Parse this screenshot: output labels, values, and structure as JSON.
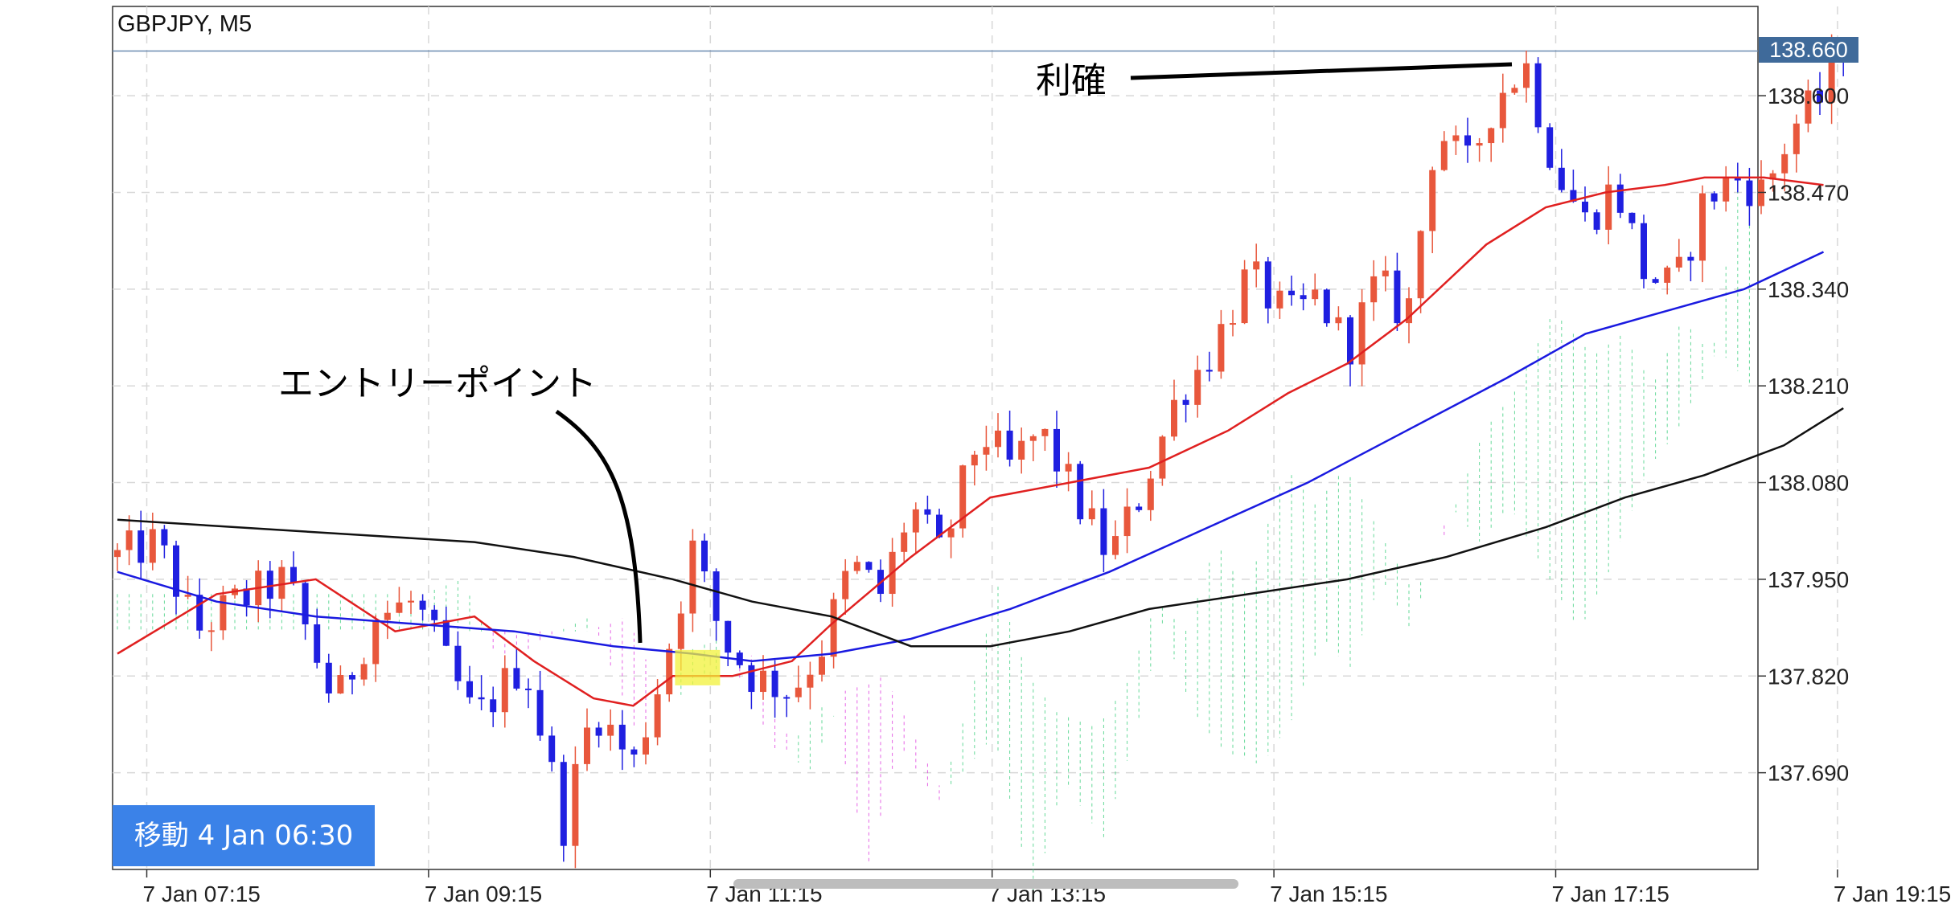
{
  "symbol_label": "GBPJPY, M5",
  "current_price": "138.660",
  "navigate_button": "移動 4 Jan 06:30",
  "annotations": {
    "entry_point": "エントリーポイント",
    "take_profit": "利確"
  },
  "colors": {
    "bull_candle": "#e8573c",
    "bear_candle": "#1f1fe0",
    "ma_fast": "#e02020",
    "ma_mid": "#1a1ae0",
    "ma_slow": "#111111",
    "cloud_bear": "#e040e0",
    "cloud_bull": "#40d080",
    "entry_highlight": "#f2f23a",
    "price_tag": "#3f6a9a",
    "nav_button": "#3b82e8"
  },
  "chart_data": {
    "type": "candlestick",
    "title": "GBPJPY, M5",
    "ylim": [
      137.56,
      138.72
    ],
    "y_ticks": [
      137.69,
      137.82,
      137.95,
      138.08,
      138.21,
      138.34,
      138.47,
      138.6
    ],
    "y_tick_labels": [
      "137.690",
      "137.820",
      "137.950",
      "138.080",
      "138.210",
      "138.340",
      "138.470",
      "138.600"
    ],
    "x_tick_labels": [
      "7 Jan 07:15",
      "7 Jan 09:15",
      "7 Jan 11:15",
      "7 Jan 13:15",
      "7 Jan 15:15",
      "7 Jan 17:15",
      "7 Jan 19:15"
    ],
    "x_tick_index": [
      2.5,
      26.5,
      50.5,
      74.5,
      98.5,
      122.5,
      146.5
    ],
    "current_price": 138.66,
    "candle_count": 148,
    "path_points": [
      [
        0,
        137.98
      ],
      [
        4,
        138.0
      ],
      [
        8,
        137.88
      ],
      [
        12,
        137.92
      ],
      [
        17,
        137.95
      ],
      [
        22,
        137.78
      ],
      [
        26,
        137.9
      ],
      [
        30,
        137.92
      ],
      [
        36,
        137.76
      ],
      [
        41,
        137.84
      ],
      [
        45,
        137.62
      ],
      [
        48,
        137.78
      ],
      [
        52,
        137.7
      ],
      [
        55,
        137.83
      ],
      [
        58,
        137.99
      ],
      [
        61,
        137.87
      ],
      [
        64,
        137.82
      ],
      [
        68,
        137.8
      ],
      [
        71,
        137.86
      ],
      [
        74,
        137.97
      ],
      [
        77,
        137.93
      ],
      [
        80,
        138.05
      ],
      [
        83,
        137.98
      ],
      [
        87,
        138.15
      ],
      [
        90,
        138.1
      ],
      [
        93,
        138.15
      ],
      [
        97,
        138.05
      ],
      [
        100,
        137.98
      ],
      [
        103,
        138.06
      ],
      [
        107,
        138.2
      ],
      [
        110,
        138.25
      ],
      [
        114,
        138.36
      ],
      [
        118,
        138.3
      ],
      [
        121,
        138.33
      ],
      [
        124,
        138.26
      ],
      [
        127,
        138.35
      ],
      [
        130,
        138.3
      ],
      [
        133,
        138.56
      ],
      [
        136,
        138.5
      ],
      [
        139,
        138.6
      ],
      [
        142,
        138.64
      ],
      [
        145,
        138.5
      ],
      [
        148,
        138.43
      ],
      [
        151,
        138.48
      ],
      [
        154,
        138.36
      ],
      [
        157,
        138.34
      ],
      [
        160,
        138.46
      ],
      [
        163,
        138.49
      ],
      [
        166,
        138.47
      ],
      [
        169,
        138.56
      ],
      [
        172,
        138.6
      ],
      [
        174,
        138.67
      ]
    ],
    "series": [
      {
        "type": "line",
        "points": [
          [
            0,
            137.85
          ],
          [
            10,
            137.93
          ],
          [
            20,
            137.95
          ],
          [
            28,
            137.88
          ],
          [
            36,
            137.9
          ],
          [
            42,
            137.84
          ],
          [
            48,
            137.79
          ],
          [
            52,
            137.78
          ],
          [
            56,
            137.82
          ],
          [
            62,
            137.82
          ],
          [
            68,
            137.84
          ],
          [
            72,
            137.89
          ],
          [
            80,
            137.98
          ],
          [
            88,
            138.06
          ],
          [
            96,
            138.08
          ],
          [
            104,
            138.1
          ],
          [
            112,
            138.15
          ],
          [
            118,
            138.2
          ],
          [
            124,
            138.24
          ],
          [
            130,
            138.3
          ],
          [
            138,
            138.4
          ],
          [
            144,
            138.45
          ],
          [
            150,
            138.47
          ],
          [
            156,
            138.48
          ],
          [
            160,
            138.49
          ],
          [
            166,
            138.49
          ],
          [
            172,
            138.48
          ]
        ]
      },
      {
        "type": "line",
        "points": [
          [
            0,
            137.96
          ],
          [
            10,
            137.92
          ],
          [
            20,
            137.9
          ],
          [
            30,
            137.89
          ],
          [
            40,
            137.88
          ],
          [
            50,
            137.86
          ],
          [
            58,
            137.85
          ],
          [
            64,
            137.84
          ],
          [
            72,
            137.85
          ],
          [
            80,
            137.87
          ],
          [
            90,
            137.91
          ],
          [
            100,
            137.96
          ],
          [
            110,
            138.02
          ],
          [
            120,
            138.08
          ],
          [
            130,
            138.15
          ],
          [
            140,
            138.22
          ],
          [
            148,
            138.28
          ],
          [
            156,
            138.31
          ],
          [
            164,
            138.34
          ],
          [
            172,
            138.39
          ]
        ]
      },
      {
        "type": "line",
        "points": [
          [
            0,
            138.03
          ],
          [
            12,
            138.02
          ],
          [
            24,
            138.01
          ],
          [
            36,
            138.0
          ],
          [
            46,
            137.98
          ],
          [
            56,
            137.95
          ],
          [
            64,
            137.92
          ],
          [
            72,
            137.9
          ],
          [
            80,
            137.86
          ],
          [
            88,
            137.86
          ],
          [
            96,
            137.88
          ],
          [
            104,
            137.91
          ],
          [
            114,
            137.93
          ],
          [
            124,
            137.95
          ],
          [
            134,
            137.98
          ],
          [
            144,
            138.02
          ],
          [
            152,
            138.06
          ],
          [
            160,
            138.09
          ],
          [
            168,
            138.13
          ],
          [
            174,
            138.18
          ]
        ]
      }
    ]
  }
}
